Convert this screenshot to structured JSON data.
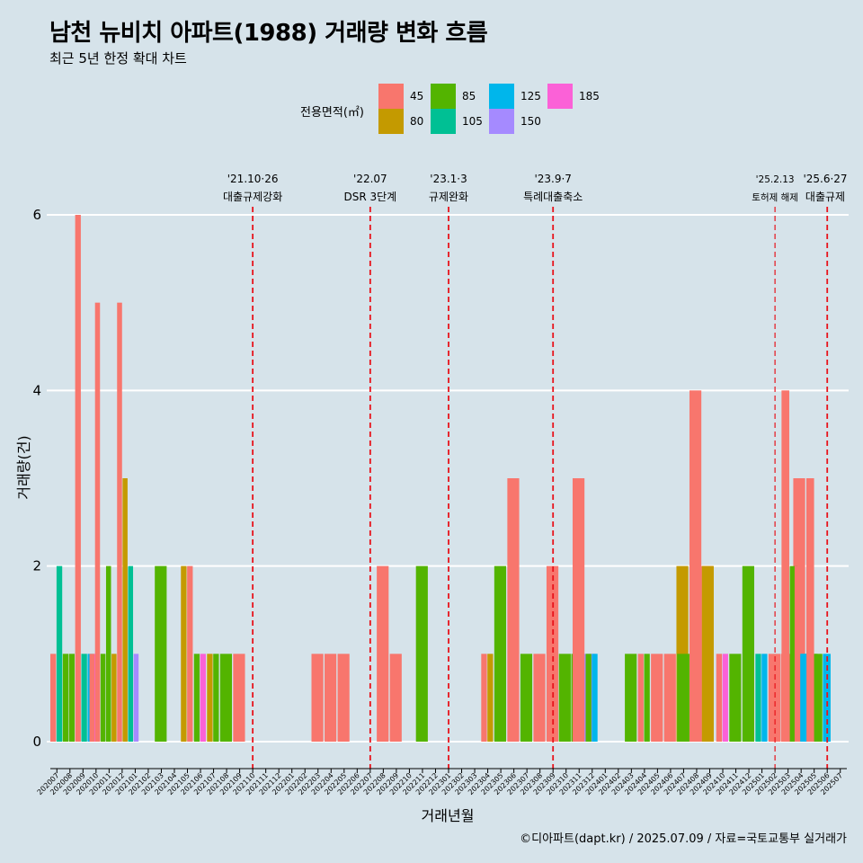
{
  "header": {
    "title": "남천 뉴비치 아파트(1988) 거래량 변화 흐름",
    "subtitle": "최근 5년 한정 확대 차트"
  },
  "legend": {
    "title": "전용면적(㎡)",
    "items": [
      {
        "label": "45",
        "color": "#F8766D"
      },
      {
        "label": "80",
        "color": "#C49A00"
      },
      {
        "label": "85",
        "color": "#53B400"
      },
      {
        "label": "105",
        "color": "#00C094"
      },
      {
        "label": "125",
        "color": "#00B6EB"
      },
      {
        "label": "150",
        "color": "#A58AFF"
      },
      {
        "label": "185",
        "color": "#FB61D7"
      }
    ]
  },
  "caption": "©디아파트(dapt.kr) / 2025.07.09 / 자료=국토교통부 실거래가",
  "chart_data": {
    "type": "bar",
    "xlabel": "거래년월",
    "ylabel": "거래량(건)",
    "ylim": [
      0,
      6
    ],
    "yticks": [
      0,
      2,
      4,
      6
    ],
    "categories": [
      "202007",
      "202008",
      "202009",
      "202010",
      "202011",
      "202012",
      "202101",
      "202102",
      "202103",
      "202104",
      "202105",
      "202106",
      "202107",
      "202108",
      "202109",
      "202110",
      "202111",
      "202112",
      "202201",
      "202202",
      "202203",
      "202204",
      "202205",
      "202206",
      "202207",
      "202208",
      "202209",
      "202210",
      "202211",
      "202212",
      "202301",
      "202302",
      "202303",
      "202304",
      "202305",
      "202306",
      "202307",
      "202308",
      "202309",
      "202310",
      "202311",
      "202312",
      "202401",
      "202402",
      "202403",
      "202404",
      "202405",
      "202406",
      "202407",
      "202408",
      "202409",
      "202410",
      "202411",
      "202412",
      "202501",
      "202502",
      "202503",
      "202504",
      "202505",
      "202506",
      "202507"
    ],
    "month_bars": [
      {
        "month": "202007",
        "bars": [
          [
            "45",
            1
          ],
          [
            "105",
            2
          ],
          [
            "85",
            1
          ],
          [
            "85",
            1
          ],
          [
            "45",
            6
          ],
          [
            "105",
            1
          ],
          [
            "125",
            1
          ],
          [
            "185",
            1
          ]
        ]
      },
      {
        "month": "202008",
        "bars": []
      },
      {
        "month": "202009",
        "bars": []
      },
      {
        "month": "202010",
        "bars": [
          [
            "45",
            1
          ],
          [
            "45",
            5
          ],
          [
            "85",
            1
          ],
          [
            "85",
            2
          ],
          [
            "80",
            1
          ],
          [
            "45",
            5
          ],
          [
            "80",
            3
          ],
          [
            "105",
            2
          ],
          [
            "150",
            1
          ]
        ]
      },
      {
        "month": "202011",
        "bars": []
      },
      {
        "month": "202012",
        "bars": []
      },
      {
        "month": "202101",
        "bars": []
      },
      {
        "month": "202102",
        "bars": []
      },
      {
        "month": "202103",
        "bars": [
          [
            "85",
            2
          ]
        ]
      },
      {
        "month": "202104",
        "bars": []
      },
      {
        "month": "202105",
        "bars": [
          [
            "80",
            2
          ],
          [
            "45",
            2
          ]
        ]
      },
      {
        "month": "202106",
        "bars": [
          [
            "85",
            1
          ],
          [
            "185",
            1
          ]
        ]
      },
      {
        "month": "202107",
        "bars": [
          [
            "80",
            1
          ],
          [
            "85",
            1
          ]
        ]
      },
      {
        "month": "202108",
        "bars": [
          [
            "85",
            1
          ]
        ]
      },
      {
        "month": "202109",
        "bars": [
          [
            "45",
            1
          ]
        ]
      },
      {
        "month": "202110",
        "bars": []
      },
      {
        "month": "202111",
        "bars": []
      },
      {
        "month": "202112",
        "bars": []
      },
      {
        "month": "202201",
        "bars": []
      },
      {
        "month": "202202",
        "bars": []
      },
      {
        "month": "202203",
        "bars": [
          [
            "45",
            1
          ]
        ]
      },
      {
        "month": "202204",
        "bars": [
          [
            "45",
            1
          ]
        ]
      },
      {
        "month": "202205",
        "bars": [
          [
            "45",
            1
          ]
        ]
      },
      {
        "month": "202206",
        "bars": []
      },
      {
        "month": "202207",
        "bars": []
      },
      {
        "month": "202208",
        "bars": [
          [
            "45",
            2
          ]
        ]
      },
      {
        "month": "202209",
        "bars": [
          [
            "45",
            1
          ]
        ]
      },
      {
        "month": "202210",
        "bars": []
      },
      {
        "month": "202211",
        "bars": [
          [
            "85",
            2
          ]
        ]
      },
      {
        "month": "202212",
        "bars": []
      },
      {
        "month": "202301",
        "bars": []
      },
      {
        "month": "202302",
        "bars": []
      },
      {
        "month": "202303",
        "bars": []
      },
      {
        "month": "202304",
        "bars": [
          [
            "45",
            1
          ],
          [
            "80",
            1
          ]
        ]
      },
      {
        "month": "202305",
        "bars": [
          [
            "85",
            2
          ]
        ]
      },
      {
        "month": "202306",
        "bars": [
          [
            "45",
            3
          ]
        ]
      },
      {
        "month": "202307",
        "bars": [
          [
            "85",
            1
          ]
        ]
      },
      {
        "month": "202308",
        "bars": [
          [
            "45",
            1
          ]
        ]
      },
      {
        "month": "202309",
        "bars": [
          [
            "45",
            2
          ],
          [
            "85",
            1
          ],
          [
            "85",
            1
          ],
          [
            "150",
            1
          ]
        ]
      },
      {
        "month": "202310",
        "bars": []
      },
      {
        "month": "202311",
        "bars": [
          [
            "45",
            3
          ]
        ]
      },
      {
        "month": "202312",
        "bars": [
          [
            "85",
            1
          ],
          [
            "125",
            1
          ]
        ]
      },
      {
        "month": "202401",
        "bars": []
      },
      {
        "month": "202402",
        "bars": []
      },
      {
        "month": "202403",
        "bars": [
          [
            "85",
            1
          ]
        ]
      },
      {
        "month": "202404",
        "bars": [
          [
            "45",
            1
          ],
          [
            "85",
            1
          ]
        ]
      },
      {
        "month": "202405",
        "bars": [
          [
            "45",
            1
          ]
        ]
      },
      {
        "month": "202406",
        "bars": [
          [
            "45",
            1
          ],
          [
            "80",
            2
          ],
          [
            "85",
            1
          ],
          [
            "45",
            2
          ]
        ]
      },
      {
        "month": "202407",
        "bars": [
          [
            "85",
            1
          ],
          [
            "45",
            4
          ],
          [
            "80",
            2
          ]
        ]
      },
      {
        "month": "202408",
        "bars": []
      },
      {
        "month": "202409",
        "bars": []
      },
      {
        "month": "202410",
        "bars": [
          [
            "45",
            1
          ],
          [
            "185",
            1
          ]
        ]
      },
      {
        "month": "202411",
        "bars": [
          [
            "85",
            1
          ]
        ]
      },
      {
        "month": "202412",
        "bars": [
          [
            "85",
            2
          ]
        ]
      },
      {
        "month": "202501",
        "bars": [
          [
            "105",
            1
          ],
          [
            "125",
            1
          ]
        ]
      },
      {
        "month": "202502",
        "bars": [
          [
            "45",
            1
          ],
          [
            "45",
            1
          ],
          [
            "45",
            3
          ],
          [
            "85",
            1
          ]
        ]
      },
      {
        "month": "202503",
        "bars": [
          [
            "45",
            4
          ],
          [
            "85",
            2
          ],
          [
            "125",
            1
          ],
          [
            "45",
            3
          ],
          [
            "85",
            1
          ],
          [
            "125",
            1
          ]
        ]
      },
      {
        "month": "202504",
        "bars": [
          [
            "45",
            2
          ],
          [
            "125",
            1
          ]
        ]
      },
      {
        "month": "202505",
        "bars": []
      },
      {
        "month": "202506",
        "bars": []
      },
      {
        "month": "202507",
        "bars": []
      }
    ],
    "annotations": [
      {
        "x": "202110",
        "date": "'21.10·26",
        "label": "대출규제강화"
      },
      {
        "x": "202207",
        "date": "'22.07",
        "label": "DSR 3단계"
      },
      {
        "x": "202301",
        "date": "'23.1·3",
        "label": "규제완화"
      },
      {
        "x": "202309",
        "date": "'23.9·7",
        "label": "특례대출축소"
      },
      {
        "x": "202502",
        "date": "'25.2.13",
        "label": "토허제 해제"
      },
      {
        "x": "202506",
        "date": "'25.6·27",
        "label": "대출규제"
      }
    ],
    "grid": true,
    "legend_position": "top"
  }
}
